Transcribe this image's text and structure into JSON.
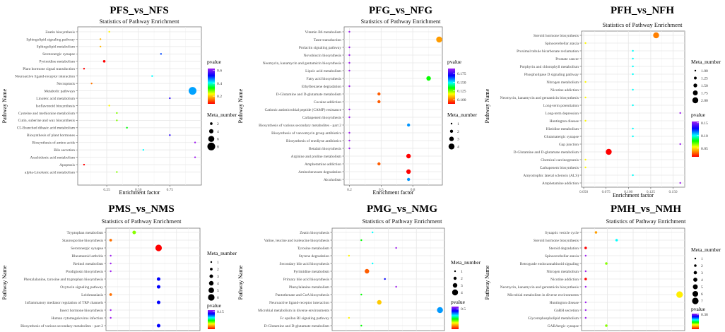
{
  "charts": [
    {
      "type": "scatter",
      "title": "PFS_vs_NFS",
      "subtitle": "Statistics of Pathway Enrichment",
      "xlabel": "Enrichment factor",
      "ylabel": "Pathway Name",
      "xlim": [
        0.02,
        1.0
      ],
      "xticks": [
        0.25,
        0.5,
        0.75
      ],
      "xtick_labels": [
        "0.25",
        "0.50",
        "0.75"
      ],
      "grid": true,
      "color_legend": {
        "title": "pvalue",
        "range": [
          0.08,
          0.63
        ],
        "ticks": [
          0.2,
          0.4,
          0.6
        ],
        "labels": [
          "0.2",
          "0.4",
          "0.6"
        ]
      },
      "size_legend": {
        "title": "Meta_number",
        "values": [
          2,
          4,
          6,
          8
        ],
        "labels": [
          "2",
          "4",
          "6",
          "8"
        ],
        "range": [
          1,
          8
        ]
      },
      "points": [
        {
          "pathway": "Zeatin biosynthesis",
          "x": 0.27,
          "pvalue": 0.23,
          "meta": 1
        },
        {
          "pathway": "Sphingolipid signaling pathway",
          "x": 0.2,
          "pvalue": 0.19,
          "meta": 1
        },
        {
          "pathway": "Sphingolipid metabolism",
          "x": 0.2,
          "pvalue": 0.19,
          "meta": 1
        },
        {
          "pathway": "Serotonergic synapse",
          "x": 0.68,
          "pvalue": 0.49,
          "meta": 1
        },
        {
          "pathway": "Pyrimidine metabolism",
          "x": 0.23,
          "pvalue": 0.08,
          "meta": 2
        },
        {
          "pathway": "Plant hormone signal transduction",
          "x": 0.07,
          "pvalue": 0.08,
          "meta": 1
        },
        {
          "pathway": "Neuroactive ligand-receptor interaction",
          "x": 0.61,
          "pvalue": 0.41,
          "meta": 1
        },
        {
          "pathway": "Necroptosis",
          "x": 0.13,
          "pvalue": 0.15,
          "meta": 1
        },
        {
          "pathway": "Metabolic pathways",
          "x": 0.93,
          "pvalue": 0.45,
          "meta": 8
        },
        {
          "pathway": "Linoleic acid metabolism",
          "x": 0.75,
          "pvalue": 0.55,
          "meta": 1
        },
        {
          "pathway": "Isoflavonoid biosynthesis",
          "x": 0.27,
          "pvalue": 0.23,
          "meta": 1
        },
        {
          "pathway": "Cysteine and methionine metabolism",
          "x": 0.33,
          "pvalue": 0.28,
          "meta": 1
        },
        {
          "pathway": "Cutin, suberine and wax biosynthesis",
          "x": 0.33,
          "pvalue": 0.28,
          "meta": 1
        },
        {
          "pathway": "C5-Branched dibasic acid metabolism",
          "x": 0.41,
          "pvalue": 0.33,
          "meta": 1
        },
        {
          "pathway": "Biosynthesis of plant hormones",
          "x": 0.75,
          "pvalue": 0.55,
          "meta": 1
        },
        {
          "pathway": "Biosynthesis of amino acids",
          "x": 0.95,
          "pvalue": 0.63,
          "meta": 1
        },
        {
          "pathway": "Bile secretion",
          "x": 0.54,
          "pvalue": 0.41,
          "meta": 1
        },
        {
          "pathway": "Arachidonic acid metabolism",
          "x": 0.95,
          "pvalue": 0.63,
          "meta": 1
        },
        {
          "pathway": "Apoptosis",
          "x": 0.07,
          "pvalue": 0.08,
          "meta": 1
        },
        {
          "pathway": "alpha-Linolenic acid metabolism",
          "x": 0.33,
          "pvalue": 0.28,
          "meta": 1
        }
      ]
    },
    {
      "type": "scatter",
      "title": "PFG_vs_NFG",
      "subtitle": "Statistics of Pathway Enrichment",
      "xlabel": "Enrichment factor",
      "ylabel": "Pathway Name",
      "xlim": [
        0.15,
        1.08
      ],
      "xticks": [
        0.2,
        0.5,
        0.8
      ],
      "xtick_labels": [
        "0.2",
        "0.5",
        "0.8"
      ],
      "grid": true,
      "color_legend": {
        "title": "pvalue",
        "range": [
          0.088,
          0.189
        ],
        "ticks": [
          0.1,
          0.125,
          0.15,
          0.175
        ],
        "labels": [
          "0.100",
          "0.125",
          "0.150",
          "0.175"
        ]
      },
      "size_legend": {
        "title": "Meta_number",
        "values": [
          1,
          2,
          3,
          4
        ],
        "labels": [
          "1",
          "2",
          "3",
          "4"
        ],
        "range": [
          1,
          4
        ]
      },
      "points": [
        {
          "pathway": "Vitamin B6 metabolism",
          "x": 0.2,
          "pvalue": 0.189,
          "meta": 1
        },
        {
          "pathway": "Taste transduction",
          "x": 1.05,
          "pvalue": 0.105,
          "meta": 4
        },
        {
          "pathway": "Prolactin signaling pathway",
          "x": 0.2,
          "pvalue": 0.189,
          "meta": 1
        },
        {
          "pathway": "Novobiocin biosynthesis",
          "x": 0.2,
          "pvalue": 0.189,
          "meta": 1
        },
        {
          "pathway": "Neomycin, kanamycin and gentamicin biosynthesis",
          "x": 0.2,
          "pvalue": 0.189,
          "meta": 1
        },
        {
          "pathway": "Lipoic acid metabolism",
          "x": 0.2,
          "pvalue": 0.189,
          "meta": 1
        },
        {
          "pathway": "Fatty acid biosynthesis",
          "x": 0.95,
          "pvalue": 0.133,
          "meta": 3
        },
        {
          "pathway": "Ethylbenzene degradation",
          "x": 0.2,
          "pvalue": 0.189,
          "meta": 1
        },
        {
          "pathway": "D-Glutamine and D-glutamate metabolism",
          "x": 0.48,
          "pvalue": 0.098,
          "meta": 2
        },
        {
          "pathway": "Cocaine addiction",
          "x": 0.48,
          "pvalue": 0.098,
          "meta": 2
        },
        {
          "pathway": "Cationic antimicrobial peptide (CAMP) resistance",
          "x": 0.2,
          "pvalue": 0.189,
          "meta": 1
        },
        {
          "pathway": "Carbapenem biosynthesis",
          "x": 0.2,
          "pvalue": 0.189,
          "meta": 1
        },
        {
          "pathway": "Biosynthesis of various secondary metabolites - part 2",
          "x": 0.76,
          "pvalue": 0.157,
          "meta": 2
        },
        {
          "pathway": "Biosynthesis of vancomycin group antibiotics",
          "x": 0.2,
          "pvalue": 0.189,
          "meta": 1
        },
        {
          "pathway": "Biosynthesis of enediyne antibiotics",
          "x": 0.2,
          "pvalue": 0.189,
          "meta": 1
        },
        {
          "pathway": "Betalain biosynthesis",
          "x": 0.2,
          "pvalue": 0.189,
          "meta": 1
        },
        {
          "pathway": "Arginine and proline metabolism",
          "x": 0.76,
          "pvalue": 0.088,
          "meta": 3
        },
        {
          "pathway": "Amphetamine addiction",
          "x": 0.48,
          "pvalue": 0.098,
          "meta": 2
        },
        {
          "pathway": "Aminobenzoate degradation",
          "x": 0.76,
          "pvalue": 0.088,
          "meta": 3
        },
        {
          "pathway": "Alcoholism",
          "x": 0.76,
          "pvalue": 0.157,
          "meta": 2
        }
      ]
    },
    {
      "type": "scatter",
      "title": "PFH_vs_NFH",
      "subtitle": "Statistics of Pathway Enrichment",
      "xlabel": "Enrichment factor",
      "ylabel": "Pathway Name",
      "xlim": [
        0.0476,
        0.163
      ],
      "xticks": [
        0.05,
        0.075,
        0.1,
        0.125,
        0.15
      ],
      "xtick_labels": [
        "0.050",
        "0.075",
        "0.100",
        "0.125",
        "0.150"
      ],
      "grid": true,
      "color_legend": {
        "title": "pvalue",
        "range": [
          0.016,
          0.155
        ],
        "ticks": [
          0.05,
          0.1,
          0.15
        ],
        "labels": [
          "0.05",
          "0.10",
          "0.15"
        ]
      },
      "size_legend": {
        "title": "Meta_number",
        "values": [
          1,
          1.25,
          1.5,
          1.75,
          2
        ],
        "labels": [
          "1.00",
          "1.25",
          "1.50",
          "1.75",
          "2.00"
        ],
        "range": [
          1,
          2
        ]
      },
      "points": [
        {
          "pathway": "Steroid hormone biosynthesis",
          "x": 0.131,
          "pvalue": 0.035,
          "meta": 2
        },
        {
          "pathway": "Spinocerebellar ataxia",
          "x": 0.052,
          "pvalue": 0.054,
          "meta": 1
        },
        {
          "pathway": "Proximal tubule bicarbonate reclamation",
          "x": 0.105,
          "pvalue": 0.099,
          "meta": 1
        },
        {
          "pathway": "Prostate cancer",
          "x": 0.105,
          "pvalue": 0.099,
          "meta": 1
        },
        {
          "pathway": "Porphyrin and chlorophyll metabolism",
          "x": 0.105,
          "pvalue": 0.099,
          "meta": 1
        },
        {
          "pathway": "Phospholipase D signaling pathway",
          "x": 0.105,
          "pvalue": 0.099,
          "meta": 1
        },
        {
          "pathway": "Nitrogen metabolism",
          "x": 0.052,
          "pvalue": 0.054,
          "meta": 1
        },
        {
          "pathway": "Nicotine addiction",
          "x": 0.105,
          "pvalue": 0.099,
          "meta": 1
        },
        {
          "pathway": "Neomycin, kanamycin and gentamicin biosynthesis",
          "x": 0.052,
          "pvalue": 0.054,
          "meta": 1
        },
        {
          "pathway": "Long-term potentiation",
          "x": 0.105,
          "pvalue": 0.099,
          "meta": 1
        },
        {
          "pathway": "Long-term depression",
          "x": 0.158,
          "pvalue": 0.155,
          "meta": 1
        },
        {
          "pathway": "Huntington disease",
          "x": 0.052,
          "pvalue": 0.054,
          "meta": 1
        },
        {
          "pathway": "Histidine metabolism",
          "x": 0.105,
          "pvalue": 0.099,
          "meta": 1
        },
        {
          "pathway": "Glutamatergic synapse",
          "x": 0.105,
          "pvalue": 0.099,
          "meta": 1
        },
        {
          "pathway": "Gap junction",
          "x": 0.158,
          "pvalue": 0.155,
          "meta": 1
        },
        {
          "pathway": "D-Glutamine and D-glutamate metabolism",
          "x": 0.078,
          "pvalue": 0.016,
          "meta": 2
        },
        {
          "pathway": "Chemical carcinogenesis",
          "x": 0.052,
          "pvalue": 0.054,
          "meta": 1
        },
        {
          "pathway": "Carbapenem biosynthesis",
          "x": 0.052,
          "pvalue": 0.054,
          "meta": 1
        },
        {
          "pathway": "Amyotrophic lateral sclerosis (ALS)",
          "x": 0.105,
          "pvalue": 0.099,
          "meta": 1
        },
        {
          "pathway": "Amphetamine addiction",
          "x": 0.158,
          "pvalue": 0.155,
          "meta": 1
        }
      ]
    },
    {
      "type": "scatter",
      "title": "PMS_vs_NMS",
      "subtitle": "Statistics of Pathway Enrichment",
      "xlabel": "",
      "ylabel": "Pathway Name",
      "xlim": [
        0,
        1
      ],
      "xticks": [],
      "xtick_labels": [],
      "grid": true,
      "color_legend": {
        "title": "pvalue",
        "range": [
          0.01,
          0.16
        ],
        "ticks": [
          0.15
        ],
        "labels": [
          "0.15"
        ]
      },
      "size_legend": {
        "title": "Meta_number",
        "values": [
          1,
          2,
          3,
          4,
          5,
          6
        ],
        "labels": [
          "1",
          "2",
          "3",
          "4",
          "5",
          "6"
        ],
        "range": [
          1,
          6
        ]
      },
      "points": [
        {
          "pathway": "Tryptophan metabolism",
          "x": 0.3,
          "pvalue": 0.064,
          "meta": 3
        },
        {
          "pathway": "Staurosporine biosynthesis",
          "x": 0.05,
          "pvalue": 0.028,
          "meta": 2
        },
        {
          "pathway": "Serotonergic synapse",
          "x": 0.56,
          "pvalue": 0.01,
          "meta": 6
        },
        {
          "pathway": "Rheumatoid arthritis",
          "x": 0.05,
          "pvalue": 0.16,
          "meta": 1
        },
        {
          "pathway": "Retinol metabolism",
          "x": 0.05,
          "pvalue": 0.16,
          "meta": 1
        },
        {
          "pathway": "Prodigiosin biosynthesis",
          "x": 0.05,
          "pvalue": 0.16,
          "meta": 1
        },
        {
          "pathway": "Phenylalanine, tyrosine and tryptophan biosynthesis",
          "x": 0.56,
          "pvalue": 0.13,
          "meta": 3
        },
        {
          "pathway": "Oxytocin signaling pathway",
          "x": 0.56,
          "pvalue": 0.13,
          "meta": 3
        },
        {
          "pathway": "Leishmaniasis",
          "x": 0.05,
          "pvalue": 0.028,
          "meta": 2
        },
        {
          "pathway": "Inflammatory mediator regulation of TRP channels",
          "x": 0.56,
          "pvalue": 0.13,
          "meta": 3
        },
        {
          "pathway": "Insect hormone biosynthesis",
          "x": 0.05,
          "pvalue": 0.16,
          "meta": 1
        },
        {
          "pathway": "Human cytomegalovirus infection",
          "x": 0.05,
          "pvalue": 0.16,
          "meta": 1
        },
        {
          "pathway": "Biosynthesis of various secondary metabolites - part 2",
          "x": 0.56,
          "pvalue": 0.13,
          "meta": 3
        }
      ]
    },
    {
      "type": "scatter",
      "title": "PMG_vs_NMG",
      "subtitle": "Statistics of Pathway Enrichment",
      "xlabel": "",
      "ylabel": "Pathway Name",
      "xlim": [
        0,
        1
      ],
      "xticks": [],
      "xtick_labels": [],
      "grid": true,
      "color_legend": {
        "title": "pvalue",
        "range": [
          0.05,
          0.55
        ],
        "ticks": [
          0.5
        ],
        "labels": [
          "0.5"
        ]
      },
      "size_legend": {
        "title": "Meta_number",
        "values": [
          1,
          2,
          3,
          4
        ],
        "labels": [
          "1",
          "2",
          "3",
          "4"
        ],
        "range": [
          1,
          4
        ]
      },
      "points": [
        {
          "pathway": "Zeatin biosynthesis",
          "x": 0.36,
          "pvalue": 0.35,
          "meta": 1
        },
        {
          "pathway": "Valine, leucine and isoleucine biosynthesis",
          "x": 0.26,
          "pvalue": 0.275,
          "meta": 1
        },
        {
          "pathway": "Tyrosine metabolism",
          "x": 0.57,
          "pvalue": 0.55,
          "meta": 1
        },
        {
          "pathway": "Styrene degradation",
          "x": 0.15,
          "pvalue": 0.185,
          "meta": 1
        },
        {
          "pathway": "Secondary bile acid biosynthesis",
          "x": 0.36,
          "pvalue": 0.35,
          "meta": 1
        },
        {
          "pathway": "Pyrimidine metabolism",
          "x": 0.31,
          "pvalue": 0.1,
          "meta": 3
        },
        {
          "pathway": "Primary bile acid biosynthesis",
          "x": 0.47,
          "pvalue": 0.45,
          "meta": 1
        },
        {
          "pathway": "Phenylalanine metabolism",
          "x": 0.57,
          "pvalue": 0.55,
          "meta": 1
        },
        {
          "pathway": "Pantothenate and CoA biosynthesis",
          "x": 0.26,
          "pvalue": 0.275,
          "meta": 1
        },
        {
          "pathway": "Neuroactive ligand-receptor interaction",
          "x": 0.42,
          "pvalue": 0.16,
          "meta": 3
        },
        {
          "pathway": "Microbial metabolism in diverse environments",
          "x": 0.96,
          "pvalue": 0.39,
          "meta": 4
        },
        {
          "pathway": "Fc epsilon RI signaling pathway",
          "x": 0.15,
          "pvalue": 0.185,
          "meta": 1
        },
        {
          "pathway": "D-Glutamine and D-glutamate metabolism",
          "x": 0.26,
          "pvalue": 0.275,
          "meta": 1
        }
      ]
    },
    {
      "type": "scatter",
      "title": "PMH_vs_NMH",
      "subtitle": "Statistics of Pathway Enrichment",
      "xlabel": "",
      "ylabel": "Pathway Name",
      "xlim": [
        0,
        1
      ],
      "xticks": [],
      "xtick_labels": [],
      "grid": true,
      "color_legend": {
        "title": "pvalue",
        "range": [
          0.02,
          0.4
        ],
        "ticks": [
          0.38
        ],
        "labels": [
          "0.38"
        ]
      },
      "size_legend": {
        "title": "Meta_number",
        "values": [
          1,
          2,
          3,
          4,
          5,
          6,
          7
        ],
        "labels": [
          "1",
          "2",
          "3",
          "4",
          "5",
          "6",
          "7"
        ],
        "range": [
          1,
          7
        ]
      },
      "points": [
        {
          "pathway": "Synaptic vesicle cycle",
          "x": 0.14,
          "pvalue": 0.085,
          "meta": 2
        },
        {
          "pathway": "Steroid hormone biosynthesis",
          "x": 0.34,
          "pvalue": 0.248,
          "meta": 2
        },
        {
          "pathway": "Steroid degradation",
          "x": 0.04,
          "pvalue": 0.02,
          "meta": 2
        },
        {
          "pathway": "Spinocerebellar ataxia",
          "x": 0.04,
          "pvalue": 0.4,
          "meta": 1
        },
        {
          "pathway": "Retrograde endocannabinoid signaling",
          "x": 0.24,
          "pvalue": 0.157,
          "meta": 2
        },
        {
          "pathway": "Nitrogen metabolism",
          "x": 0.04,
          "pvalue": 0.4,
          "meta": 1
        },
        {
          "pathway": "Nicotine addiction",
          "x": 0.04,
          "pvalue": 0.02,
          "meta": 2
        },
        {
          "pathway": "Neomycin, kanamycin and gentamicin biosynthesis",
          "x": 0.04,
          "pvalue": 0.4,
          "meta": 1
        },
        {
          "pathway": "Microbial metabolism in diverse environments",
          "x": 0.95,
          "pvalue": 0.119,
          "meta": 7
        },
        {
          "pathway": "Huntington disease",
          "x": 0.04,
          "pvalue": 0.4,
          "meta": 1
        },
        {
          "pathway": "GnRH secretion",
          "x": 0.04,
          "pvalue": 0.4,
          "meta": 1
        },
        {
          "pathway": "Glycerophospholipid metabolism",
          "x": 0.04,
          "pvalue": 0.4,
          "meta": 1
        },
        {
          "pathway": "GABAergic synapse",
          "x": 0.24,
          "pvalue": 0.157,
          "meta": 2
        }
      ]
    }
  ]
}
